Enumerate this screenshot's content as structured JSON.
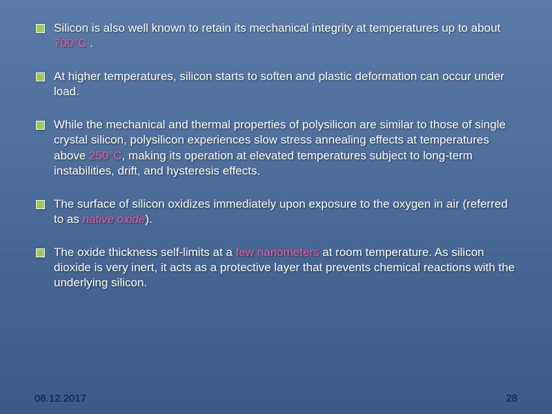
{
  "slide": {
    "bullets": [
      {
        "parts": [
          {
            "text": "Silicon is also well known to retain its mechanical integrity at temperatures up to about "
          },
          {
            "text": "700°C",
            "style": "hl"
          },
          {
            "text": " ."
          }
        ]
      },
      {
        "parts": [
          {
            "text": "At higher temperatures, silicon starts to soften and plastic deformation can occur under load."
          }
        ]
      },
      {
        "parts": [
          {
            "text": "While the mechanical and thermal properties of polysilicon are similar to those of single crystal silicon, polysilicon experiences slow stress annealing effects at temperatures above "
          },
          {
            "text": "250°C",
            "style": "hl"
          },
          {
            "text": ", making its operation at elevated temperatures subject to long-term instabilities, drift, and hysteresis effects."
          }
        ]
      },
      {
        "parts": [
          {
            "text": "The surface of silicon oxidizes immediately upon exposure to the oxygen in air (referred to as "
          },
          {
            "text": "native oxide",
            "style": "hli"
          },
          {
            "text": ")."
          }
        ]
      },
      {
        "parts": [
          {
            "text": "The oxide thickness self-limits at a "
          },
          {
            "text": "few nanometers",
            "style": "hl"
          },
          {
            "text": " at room temperature. As silicon dioxide is very inert, it acts as a protective layer that prevents chemical reactions with the underlying silicon."
          }
        ]
      }
    ],
    "footer_date": "08.12.2017",
    "footer_page": "28",
    "colors": {
      "text": "#ffffff",
      "highlight": "#e85a9e",
      "bullet_marker": "#a3c85a",
      "footer_text": "#0a1a3a",
      "bg_top": "#5a7ba8",
      "bg_bottom": "#3a5a88"
    },
    "typography": {
      "body_fontsize": 17,
      "footer_fontsize": 15,
      "font_family": "Tahoma"
    }
  }
}
